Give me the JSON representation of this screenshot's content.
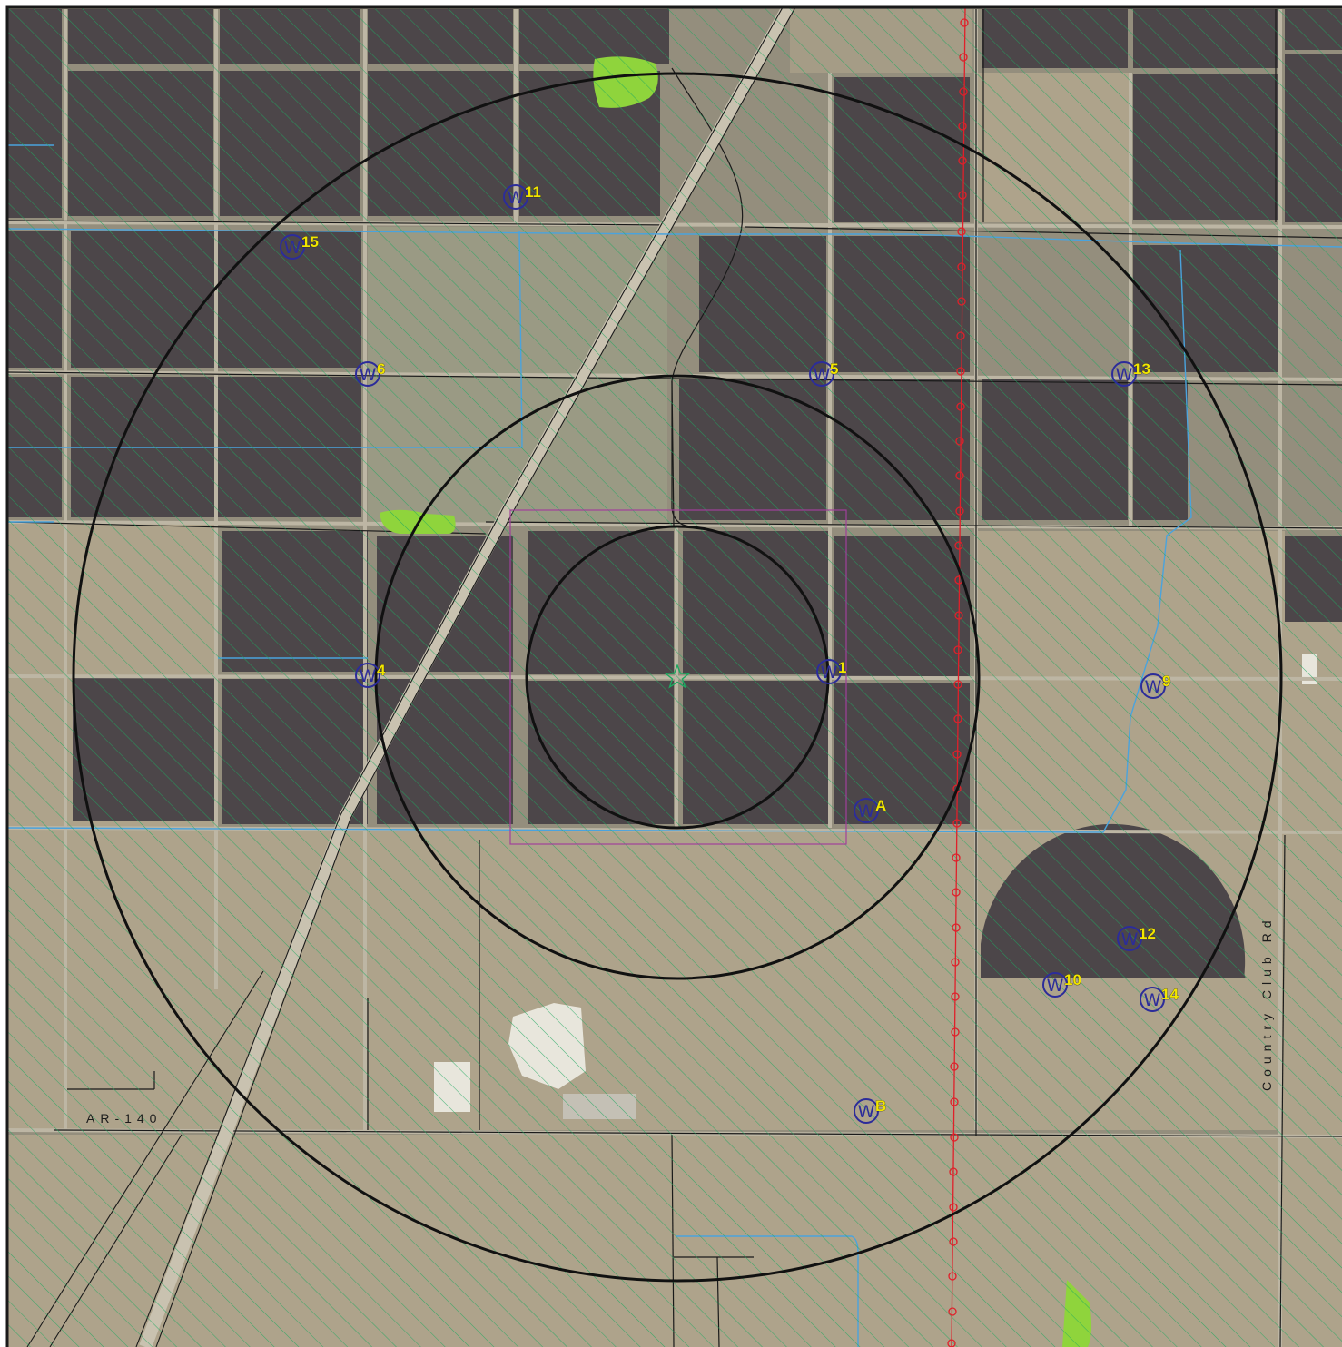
{
  "map": {
    "colors": {
      "background": "#8f8a7a",
      "dark_field": "#4c4649",
      "light_field": "#aca18a",
      "hatch": "#1ea860",
      "ring": "#111111",
      "well": "#2c2c9a",
      "label_fill": "#f2e600",
      "water_line": "#4aa3dd",
      "powerline": "#e0202a",
      "wetland": "#8fd43c",
      "site_box": "#a0409a"
    },
    "road_labels": {
      "ar140": "AR-140",
      "country_club": "Country Club Rd"
    },
    "well_symbol": "W",
    "wells": [
      {
        "id": "1"
      },
      {
        "id": "4"
      },
      {
        "id": "5"
      },
      {
        "id": "6"
      },
      {
        "id": "9"
      },
      {
        "id": "10"
      },
      {
        "id": "11"
      },
      {
        "id": "12"
      },
      {
        "id": "13"
      },
      {
        "id": "14"
      },
      {
        "id": "15"
      },
      {
        "id": "A"
      },
      {
        "id": "B"
      }
    ],
    "buffer_rings": 3,
    "center_marker_icon": "star-outline-icon"
  }
}
